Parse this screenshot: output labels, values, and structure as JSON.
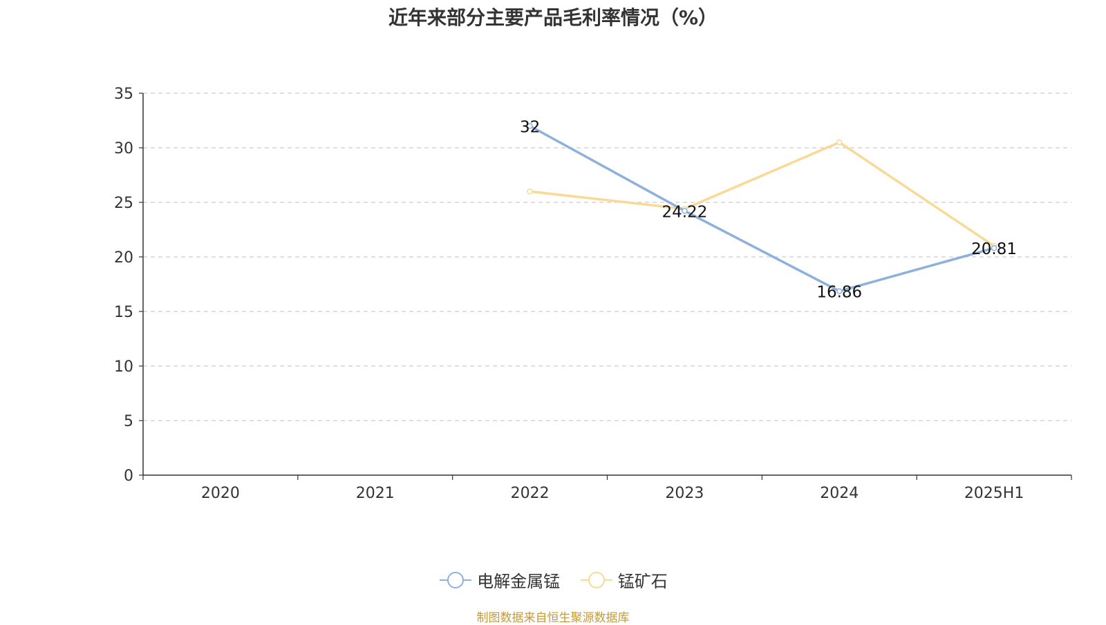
{
  "chart_data": {
    "type": "line",
    "title": "近年来部分主要产品毛利率情况（%）",
    "categories": [
      "2020",
      "2021",
      "2022",
      "2023",
      "2024",
      "2025H1"
    ],
    "ylim": [
      0,
      35
    ],
    "yticks": [
      0,
      5,
      10,
      15,
      20,
      25,
      30,
      35
    ],
    "grid": true,
    "legend_position": "bottom",
    "series": [
      {
        "name": "电解金属锰",
        "color": "#8eb0dc",
        "values": [
          null,
          null,
          32,
          24.22,
          16.86,
          20.81
        ],
        "labels": [
          "",
          "",
          "32",
          "24.22",
          "16.86",
          "20.81"
        ]
      },
      {
        "name": "锰矿石",
        "color": "#f9d995",
        "values": [
          null,
          null,
          26,
          24.4,
          30.5,
          21
        ],
        "labels": [
          "",
          "",
          "",
          "",
          "",
          ""
        ]
      }
    ]
  },
  "source": "制图数据来自恒生聚源数据库"
}
